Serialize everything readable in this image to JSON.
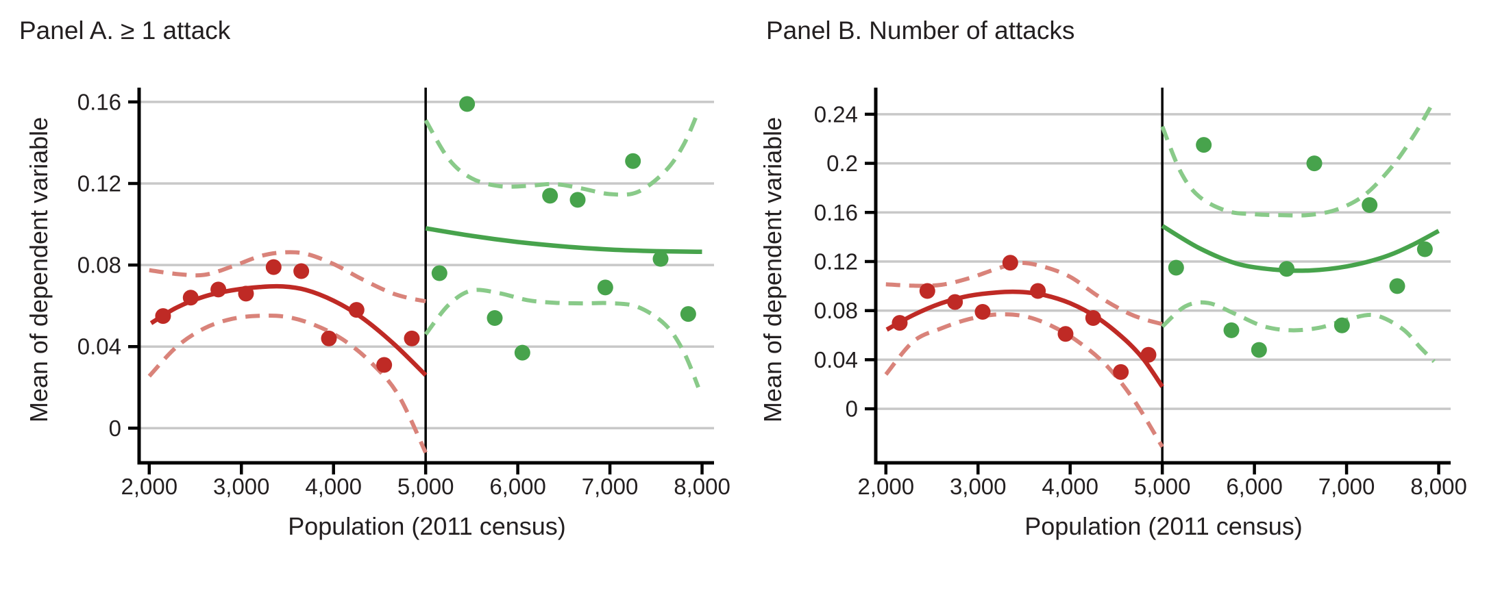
{
  "figure": {
    "background": "#ffffff",
    "colors": {
      "below_cutoff": "#bf2a25",
      "below_cutoff_ci": "#d9837a",
      "above_cutoff": "#47a34c",
      "above_cutoff_ci": "#89ca89",
      "gridline": "#c8c8c8",
      "axis": "#000000",
      "text": "#231f20"
    }
  },
  "chart_data": [
    {
      "panel": "A",
      "type": "scatter",
      "title": "Panel A. ≥ 1 attack",
      "xlabel": "Population (2011 census)",
      "ylabel": "Mean of dependent variable",
      "grid": true,
      "legend": "none",
      "rd_cutoff_x": 5000,
      "xlim": [
        1890,
        8130
      ],
      "ylim": [
        -0.017,
        0.166
      ],
      "x_ticks": [
        2000,
        3000,
        4000,
        5000,
        6000,
        7000,
        8000
      ],
      "x_tick_labels": [
        "2,000",
        "3,000",
        "4,000",
        "5,000",
        "6,000",
        "7,000",
        "8,000"
      ],
      "y_ticks": [
        0,
        0.04,
        0.08,
        0.12,
        0.16
      ],
      "y_tick_labels": [
        "0",
        "0.04",
        "0.08",
        "0.12",
        "0.16"
      ],
      "below_points": {
        "x": [
          2150,
          2450,
          2750,
          3050,
          3350,
          3650,
          3950,
          4250,
          4550,
          4850
        ],
        "y": [
          0.055,
          0.064,
          0.068,
          0.066,
          0.079,
          0.077,
          0.044,
          0.058,
          0.031,
          0.044
        ]
      },
      "above_points": {
        "x": [
          5150,
          5450,
          5750,
          6050,
          6350,
          6650,
          6950,
          7250,
          7550,
          7850
        ],
        "y": [
          0.076,
          0.159,
          0.054,
          0.037,
          0.114,
          0.112,
          0.069,
          0.131,
          0.083,
          0.056
        ]
      },
      "below_fit": [
        [
          2020,
          0.0515
        ],
        [
          2300,
          0.0592
        ],
        [
          2600,
          0.0646
        ],
        [
          2900,
          0.0676
        ],
        [
          3200,
          0.0692
        ],
        [
          3450,
          0.0695
        ],
        [
          3700,
          0.0678
        ],
        [
          4000,
          0.0625
        ],
        [
          4300,
          0.0545
        ],
        [
          4650,
          0.0415
        ],
        [
          5000,
          0.026
        ]
      ],
      "below_ci_upper": [
        [
          2000,
          0.0775
        ],
        [
          2300,
          0.0756
        ],
        [
          2600,
          0.0752
        ],
        [
          2900,
          0.0793
        ],
        [
          3200,
          0.0843
        ],
        [
          3450,
          0.0862
        ],
        [
          3700,
          0.0855
        ],
        [
          4000,
          0.0805
        ],
        [
          4300,
          0.0733
        ],
        [
          4600,
          0.0668
        ],
        [
          4800,
          0.064
        ],
        [
          5000,
          0.0622
        ]
      ],
      "below_ci_lower": [
        [
          2000,
          0.0255
        ],
        [
          2300,
          0.04
        ],
        [
          2600,
          0.049
        ],
        [
          2900,
          0.0536
        ],
        [
          3200,
          0.0551
        ],
        [
          3500,
          0.0545
        ],
        [
          3800,
          0.0505
        ],
        [
          4100,
          0.0435
        ],
        [
          4400,
          0.0325
        ],
        [
          4700,
          0.0165
        ],
        [
          5000,
          -0.012
        ]
      ],
      "above_fit": [
        [
          5000,
          0.098
        ],
        [
          5500,
          0.0943
        ],
        [
          6000,
          0.0913
        ],
        [
          6500,
          0.0891
        ],
        [
          7000,
          0.0876
        ],
        [
          7500,
          0.0868
        ],
        [
          8000,
          0.0865
        ]
      ],
      "above_ci_upper": [
        [
          5000,
          0.151
        ],
        [
          5250,
          0.132
        ],
        [
          5500,
          0.1225
        ],
        [
          5800,
          0.1187
        ],
        [
          6100,
          0.1188
        ],
        [
          6400,
          0.1197
        ],
        [
          6700,
          0.1175
        ],
        [
          7000,
          0.1148
        ],
        [
          7300,
          0.1158
        ],
        [
          7600,
          0.126
        ],
        [
          7800,
          0.139
        ],
        [
          7960,
          0.1555
        ]
      ],
      "above_ci_lower": [
        [
          5000,
          0.046
        ],
        [
          5250,
          0.0605
        ],
        [
          5500,
          0.0675
        ],
        [
          5800,
          0.0662
        ],
        [
          6100,
          0.0628
        ],
        [
          6400,
          0.0615
        ],
        [
          6700,
          0.0612
        ],
        [
          7000,
          0.0613
        ],
        [
          7300,
          0.0595
        ],
        [
          7600,
          0.0508
        ],
        [
          7800,
          0.0375
        ],
        [
          7960,
          0.02
        ]
      ]
    },
    {
      "panel": "B",
      "type": "scatter",
      "title": "Panel B. Number of attacks",
      "xlabel": "Population (2011 census)",
      "ylabel": "Mean of dependent variable",
      "grid": true,
      "legend": "none",
      "rd_cutoff_x": 5000,
      "xlim": [
        1890,
        8130
      ],
      "ylim": [
        -0.044,
        0.26
      ],
      "x_ticks": [
        2000,
        3000,
        4000,
        5000,
        6000,
        7000,
        8000
      ],
      "x_tick_labels": [
        "2,000",
        "3,000",
        "4,000",
        "5,000",
        "6,000",
        "7,000",
        "8,000"
      ],
      "y_ticks": [
        0,
        0.04,
        0.08,
        0.12,
        0.16,
        0.2,
        0.24
      ],
      "y_tick_labels": [
        "0",
        "0.04",
        "0.08",
        "0.12",
        "0.16",
        "0.2",
        "0.24"
      ],
      "below_points": {
        "x": [
          2150,
          2450,
          2750,
          3050,
          3350,
          3650,
          3950,
          4250,
          4550,
          4850
        ],
        "y": [
          0.07,
          0.096,
          0.087,
          0.079,
          0.119,
          0.096,
          0.061,
          0.074,
          0.03,
          0.044
        ]
      },
      "above_points": {
        "x": [
          5150,
          5450,
          5750,
          6050,
          6350,
          6650,
          6950,
          7250,
          7550,
          7850
        ],
        "y": [
          0.115,
          0.215,
          0.064,
          0.048,
          0.114,
          0.2,
          0.068,
          0.166,
          0.1,
          0.13
        ]
      },
      "below_fit": [
        [
          2010,
          0.0645
        ],
        [
          2300,
          0.0765
        ],
        [
          2600,
          0.086
        ],
        [
          2900,
          0.092
        ],
        [
          3200,
          0.0948
        ],
        [
          3450,
          0.0952
        ],
        [
          3700,
          0.093
        ],
        [
          4000,
          0.086
        ],
        [
          4300,
          0.074
        ],
        [
          4600,
          0.056
        ],
        [
          4800,
          0.04
        ],
        [
          5000,
          0.018
        ]
      ],
      "below_ci_upper": [
        [
          2000,
          0.1015
        ],
        [
          2300,
          0.1003
        ],
        [
          2600,
          0.101
        ],
        [
          2900,
          0.1063
        ],
        [
          3200,
          0.114
        ],
        [
          3450,
          0.1188
        ],
        [
          3700,
          0.116
        ],
        [
          4000,
          0.1075
        ],
        [
          4300,
          0.092
        ],
        [
          4600,
          0.079
        ],
        [
          4800,
          0.073
        ],
        [
          5000,
          0.069
        ]
      ],
      "below_ci_lower": [
        [
          2000,
          0.028
        ],
        [
          2300,
          0.055
        ],
        [
          2600,
          0.0655
        ],
        [
          2900,
          0.073
        ],
        [
          3200,
          0.0768
        ],
        [
          3500,
          0.0755
        ],
        [
          3800,
          0.0675
        ],
        [
          4100,
          0.054
        ],
        [
          4400,
          0.0348
        ],
        [
          4700,
          0.0062
        ],
        [
          5000,
          -0.031
        ]
      ],
      "above_fit": [
        [
          5000,
          0.149
        ],
        [
          5400,
          0.131
        ],
        [
          5800,
          0.1185
        ],
        [
          6200,
          0.1135
        ],
        [
          6600,
          0.1127
        ],
        [
          7000,
          0.116
        ],
        [
          7400,
          0.1235
        ],
        [
          7700,
          0.133
        ],
        [
          8000,
          0.145
        ]
      ],
      "above_ci_upper": [
        [
          5000,
          0.23
        ],
        [
          5200,
          0.193
        ],
        [
          5400,
          0.173
        ],
        [
          5700,
          0.1612
        ],
        [
          6000,
          0.1585
        ],
        [
          6300,
          0.1578
        ],
        [
          6600,
          0.158
        ],
        [
          6900,
          0.1625
        ],
        [
          7200,
          0.1745
        ],
        [
          7500,
          0.198
        ],
        [
          7750,
          0.225
        ],
        [
          7950,
          0.251
        ]
      ],
      "above_ci_lower": [
        [
          5000,
          0.067
        ],
        [
          5250,
          0.0835
        ],
        [
          5500,
          0.0862
        ],
        [
          5800,
          0.077
        ],
        [
          6100,
          0.0672
        ],
        [
          6400,
          0.064
        ],
        [
          6700,
          0.066
        ],
        [
          7000,
          0.0725
        ],
        [
          7300,
          0.0763
        ],
        [
          7600,
          0.0655
        ],
        [
          7800,
          0.05
        ],
        [
          7950,
          0.0385
        ]
      ]
    }
  ]
}
